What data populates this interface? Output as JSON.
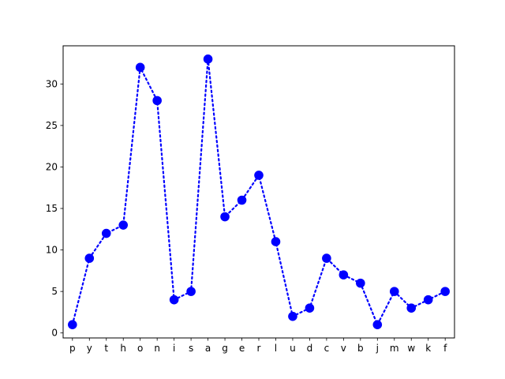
{
  "chart_data": {
    "type": "line",
    "categories": [
      "p",
      "y",
      "t",
      "h",
      "o",
      "n",
      "i",
      "s",
      "a",
      "g",
      "e",
      "r",
      "l",
      "u",
      "d",
      "c",
      "v",
      "b",
      "j",
      "m",
      "w",
      "k",
      "f"
    ],
    "series": [
      {
        "values": [
          1,
          9,
          12,
          13,
          32,
          28,
          4,
          5,
          33,
          14,
          16,
          19,
          11,
          2,
          3,
          9,
          7,
          6,
          1,
          5,
          3,
          4,
          5
        ]
      }
    ],
    "title": "",
    "xlabel": "",
    "ylabel": "",
    "ylim": [
      -0.6,
      34.6
    ],
    "yticks": [
      0,
      5,
      10,
      15,
      20,
      25,
      30
    ],
    "grid": false,
    "line_style": "dotted",
    "marker": "circle",
    "color": "#0000ff"
  }
}
